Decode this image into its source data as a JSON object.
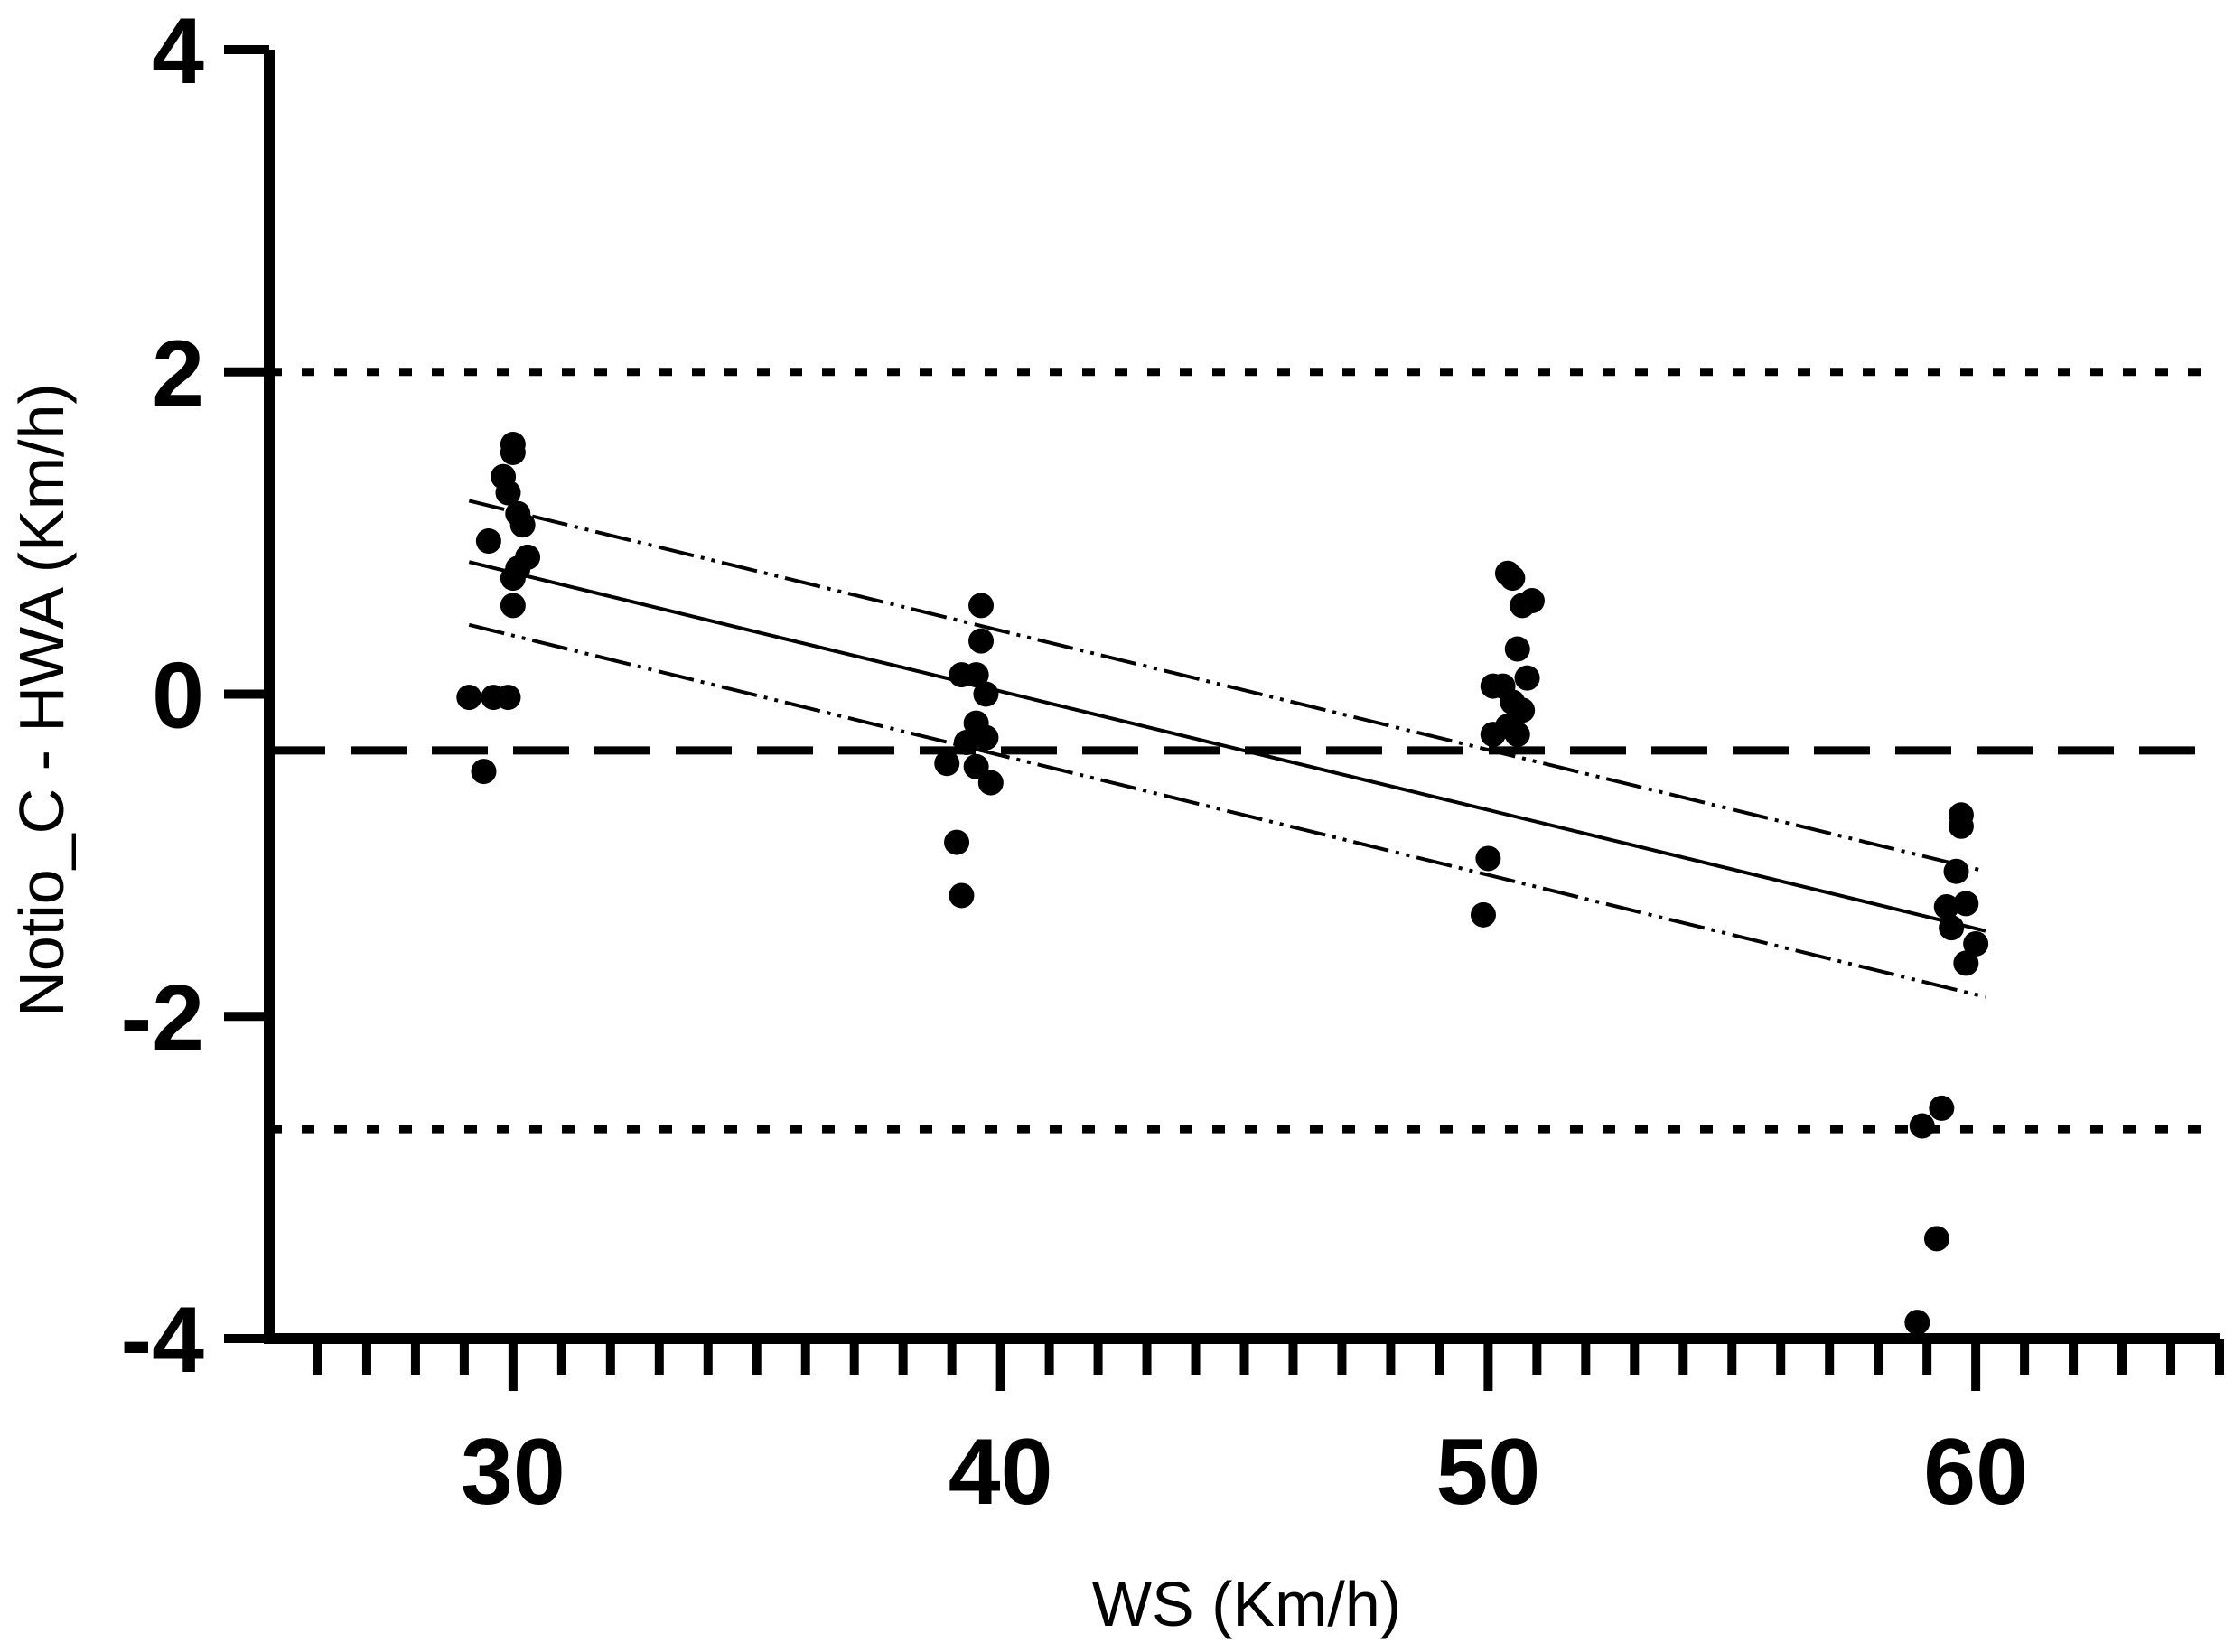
{
  "chart_data": {
    "type": "scatter",
    "title": "",
    "xlabel": "WS (Km/h)",
    "ylabel": "Notio_C - HWA  (Km/h)",
    "xlim": [
      25,
      65
    ],
    "ylim": [
      -4,
      4
    ],
    "x_ticks": [
      30,
      40,
      50,
      60
    ],
    "x_tick_labels": [
      "30",
      "40",
      "50",
      "60"
    ],
    "x_minor_step": 1,
    "y_ticks": [
      4,
      2,
      0,
      -2,
      -4
    ],
    "y_tick_labels": [
      "4",
      "2",
      "0",
      "-2",
      "-4"
    ],
    "grid": false,
    "points": [
      [
        29.1,
        -0.02
      ],
      [
        29.6,
        -0.02
      ],
      [
        29.9,
        -0.02
      ],
      [
        29.4,
        -0.48
      ],
      [
        29.5,
        0.95
      ],
      [
        29.8,
        1.35
      ],
      [
        30.0,
        1.55
      ],
      [
        30.0,
        1.5
      ],
      [
        29.9,
        1.25
      ],
      [
        30.1,
        1.12
      ],
      [
        30.2,
        1.05
      ],
      [
        30.3,
        0.85
      ],
      [
        30.1,
        0.78
      ],
      [
        30.0,
        0.72
      ],
      [
        30.0,
        0.55
      ],
      [
        38.9,
        -0.43
      ],
      [
        39.2,
        0.12
      ],
      [
        39.5,
        0.12
      ],
      [
        39.6,
        0.55
      ],
      [
        39.6,
        0.33
      ],
      [
        39.7,
        0.0
      ],
      [
        39.5,
        -0.18
      ],
      [
        39.7,
        -0.27
      ],
      [
        39.3,
        -0.3
      ],
      [
        39.5,
        -0.45
      ],
      [
        39.8,
        -0.55
      ],
      [
        39.1,
        -0.92
      ],
      [
        39.2,
        -1.25
      ],
      [
        50.0,
        -1.02
      ],
      [
        49.9,
        -1.37
      ],
      [
        50.1,
        -0.25
      ],
      [
        50.1,
        0.05
      ],
      [
        50.3,
        0.05
      ],
      [
        50.4,
        0.75
      ],
      [
        50.5,
        0.72
      ],
      [
        50.7,
        0.55
      ],
      [
        50.9,
        0.58
      ],
      [
        50.8,
        0.1
      ],
      [
        50.6,
        0.28
      ],
      [
        50.5,
        -0.05
      ],
      [
        50.7,
        -0.1
      ],
      [
        50.4,
        -0.2
      ],
      [
        50.6,
        -0.25
      ],
      [
        59.7,
        -0.75
      ],
      [
        59.7,
        -0.82
      ],
      [
        59.6,
        -1.1
      ],
      [
        59.4,
        -1.32
      ],
      [
        59.5,
        -1.45
      ],
      [
        59.8,
        -1.3
      ],
      [
        60.0,
        -1.55
      ],
      [
        59.8,
        -1.67
      ],
      [
        58.9,
        -2.68
      ],
      [
        59.3,
        -2.57
      ],
      [
        59.2,
        -3.38
      ],
      [
        58.8,
        -3.9
      ]
    ],
    "regression": {
      "x": [
        29.1,
        60.2
      ],
      "y": [
        0.82,
        -1.47
      ]
    },
    "confidence_upper": {
      "x": [
        29.1,
        60.2
      ],
      "y": [
        1.2,
        -1.1
      ]
    },
    "confidence_lower": {
      "x": [
        29.1,
        60.2
      ],
      "y": [
        0.43,
        -1.88
      ]
    },
    "bias": -0.35,
    "upper_loa": 2.0,
    "lower_loa": -2.7
  }
}
